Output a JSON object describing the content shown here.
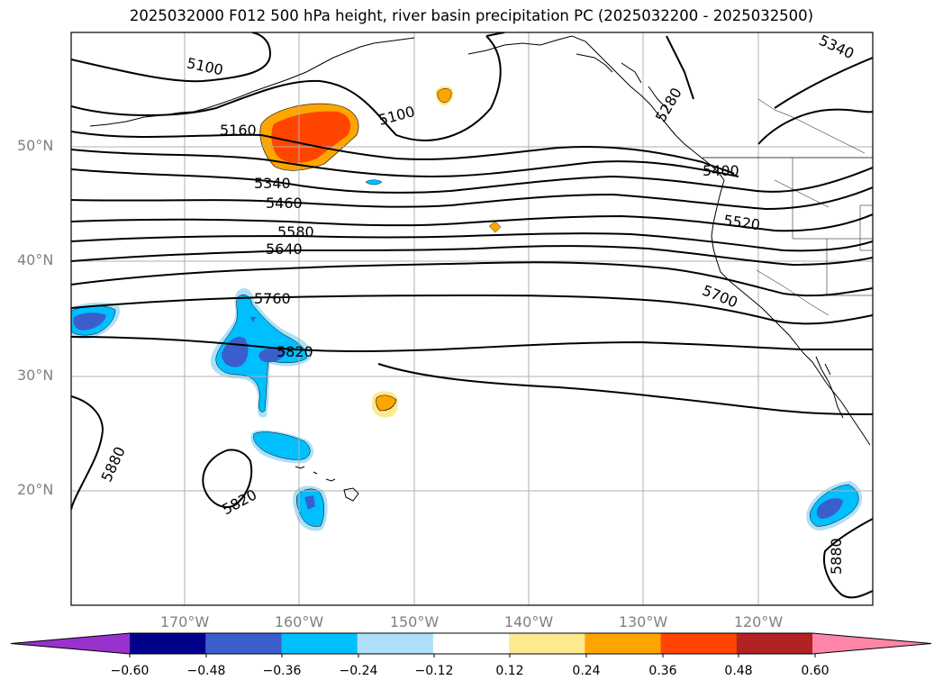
{
  "title": "2025032000 F012 500 hPa height, river basin precipitation PC (2025032200 - 2025032500)",
  "map": {
    "lon_range": [
      -180,
      -110
    ],
    "lat_range": [
      10,
      60
    ],
    "lat_labels": [
      "50°N",
      "40°N",
      "30°N",
      "20°N"
    ],
    "lon_labels": [
      "170°W",
      "160°W",
      "150°W",
      "140°W",
      "130°W",
      "120°W"
    ],
    "contour_labels": [
      "5100",
      "5100",
      "5160",
      "5340",
      "5460",
      "5580",
      "5640",
      "5760",
      "5820",
      "5340",
      "5280",
      "5400",
      "5520",
      "5700",
      "5880",
      "5820",
      "5880"
    ]
  },
  "colorbar": {
    "ticks": [
      "−0.60",
      "−0.48",
      "−0.36",
      "−0.24",
      "−0.12",
      "0.12",
      "0.24",
      "0.36",
      "0.48",
      "0.60"
    ],
    "colors": [
      "#9932CC",
      "#00008B",
      "#3A5FCD",
      "#00BFFF",
      "#ADE0F8",
      "#FFFFFF",
      "#FCEA91",
      "#FFA500",
      "#FF4500",
      "#B22222",
      "#FF86A8"
    ]
  }
}
